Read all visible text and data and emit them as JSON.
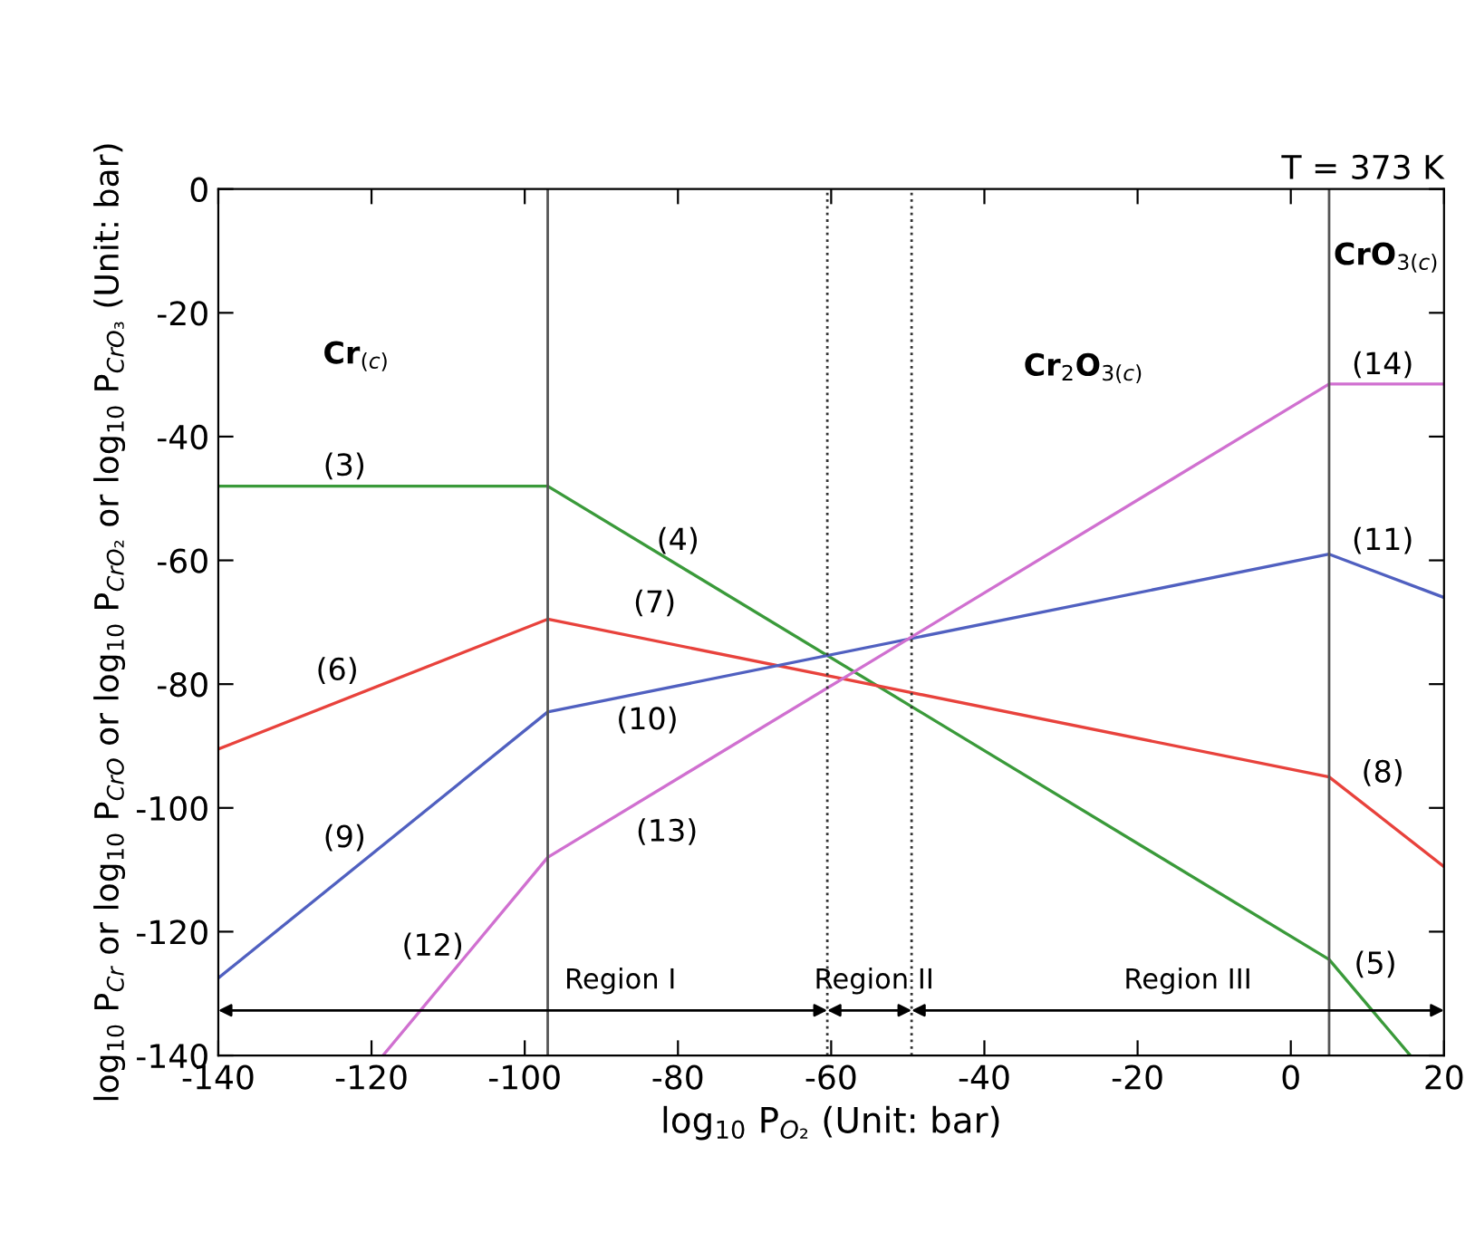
{
  "chart_data": {
    "type": "line",
    "title": "T = 373 K",
    "xlabel": "log$_{10}$ P$_{O₂}$ (Unit: bar)",
    "ylabel": "log$_{10}$ P$_{Cr}$ or log$_{10}$ P$_{CrO}$ or log$_{10}$ P$_{CrO₂}$ or log$_{10}$ P$_{CrO₃}$ (Unit: bar)",
    "series": [
      {
        "color": "#3a9a3a",
        "x": [
          -140,
          -97,
          5,
          15.6
        ],
        "values": [
          -48,
          -48,
          -124.5,
          -140
        ]
      },
      {
        "color": "#e8423c",
        "x": [
          -140,
          -97,
          5,
          20
        ],
        "values": [
          -90.5,
          -69.5,
          -95,
          -109.5
        ]
      },
      {
        "color": "#5060c0",
        "x": [
          -140,
          -97,
          5,
          20
        ],
        "values": [
          -127.5,
          -84.5,
          -59,
          -66
        ]
      },
      {
        "color": "#d070d0",
        "x": [
          -118.5,
          -97,
          5,
          20
        ],
        "values": [
          -140,
          -108,
          -31.5,
          -31.5
        ]
      }
    ],
    "xlim": [
      -140,
      20
    ],
    "ylim": [
      -140,
      0
    ],
    "xticks": [
      -140,
      -120,
      -100,
      -80,
      -60,
      -40,
      -20,
      0,
      20
    ],
    "yticks": [
      -140,
      -120,
      -100,
      -80,
      -60,
      -40,
      -20,
      0
    ],
    "grid": false,
    "legend": false,
    "marker": "none",
    "line_style": "solid",
    "ref_lines": [
      {
        "axis": "x",
        "value": -97,
        "label": null,
        "color": "#555555",
        "line_style": "solid"
      },
      {
        "axis": "x",
        "value": -60.5,
        "label": null,
        "color": "#333333",
        "line_style": "dotted"
      },
      {
        "axis": "x",
        "value": -49.5,
        "label": null,
        "color": "#333333",
        "line_style": "dotted"
      },
      {
        "axis": "x",
        "value": 5,
        "label": null,
        "color": "#555555",
        "line_style": "solid"
      }
    ],
    "annotations": [
      "Region I",
      "Region II",
      "Region III",
      "Cr$_{(c)}$",
      "Cr$_{2}$O$_{3(c)}$",
      "CrO$_{3(c)}$",
      "(3)",
      "(4)",
      "(7)",
      "(6)",
      "(10)",
      "(9)",
      "(13)",
      "(12)",
      "(14)",
      "(11)",
      "(8)",
      "(5)"
    ]
  }
}
